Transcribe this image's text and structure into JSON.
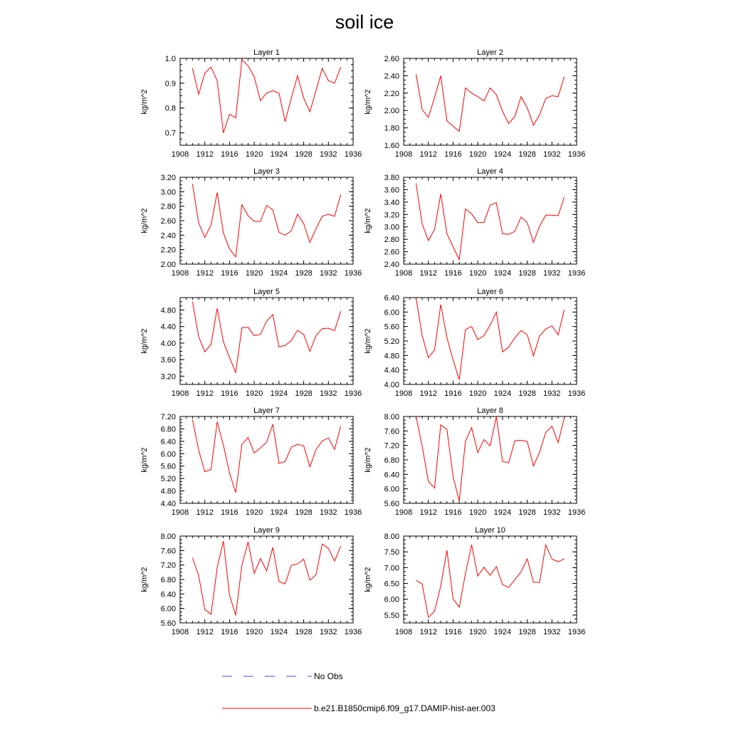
{
  "title": "soil ice",
  "colors": {
    "model": "#ff0000",
    "obs": "#4444ff",
    "axis": "#000000"
  },
  "legend": {
    "obs_label": "No Obs",
    "model_label": "b.e21.B1850cmip6.f09_g17.DAMIP-hist-aer.003"
  },
  "chart_data": [
    {
      "type": "line",
      "title": "Layer 1",
      "ylabel": "kg/m^2",
      "xlim": [
        1908,
        1936
      ],
      "ylim": [
        0.65,
        1.0
      ],
      "xticks": [
        "1908",
        "1912",
        "1916",
        "1920",
        "1924",
        "1928",
        "1932",
        "1936"
      ],
      "yticks": [
        {
          "v": 0.7,
          "t": "0.7"
        },
        {
          "v": 0.8,
          "t": "0.8"
        },
        {
          "v": 0.9,
          "t": "0.9"
        },
        {
          "v": 1.0,
          "t": "1.0"
        }
      ],
      "series": [
        {
          "x": [
            1910,
            1911,
            1912,
            1913,
            1914,
            1915,
            1916,
            1917,
            1918,
            1919,
            1920,
            1921,
            1922,
            1923,
            1924,
            1925,
            1926,
            1927,
            1928,
            1929,
            1930,
            1931,
            1932,
            1933,
            1934
          ],
          "y": [
            0.96,
            0.855,
            0.94,
            0.965,
            0.91,
            0.7,
            0.775,
            0.76,
            0.995,
            0.97,
            0.925,
            0.83,
            0.86,
            0.87,
            0.86,
            0.745,
            0.84,
            0.93,
            0.84,
            0.785,
            0.87,
            0.96,
            0.91,
            0.9,
            0.965
          ]
        }
      ]
    },
    {
      "type": "line",
      "title": "Layer 2",
      "ylabel": "kg/m^2",
      "xlim": [
        1908,
        1936
      ],
      "ylim": [
        1.6,
        2.6
      ],
      "xticks": [
        "1908",
        "1912",
        "1916",
        "1920",
        "1924",
        "1928",
        "1932",
        "1936"
      ],
      "yticks": [
        {
          "v": 1.6,
          "t": "1.60"
        },
        {
          "v": 1.8,
          "t": "1.80"
        },
        {
          "v": 2.0,
          "t": "2.00"
        },
        {
          "v": 2.2,
          "t": "2.20"
        },
        {
          "v": 2.4,
          "t": "2.40"
        },
        {
          "v": 2.6,
          "t": "2.60"
        }
      ],
      "series": [
        {
          "x": [
            1910,
            1911,
            1912,
            1913,
            1914,
            1915,
            1916,
            1917,
            1918,
            1919,
            1920,
            1921,
            1922,
            1923,
            1924,
            1925,
            1926,
            1927,
            1928,
            1929,
            1930,
            1931,
            1932,
            1933,
            1934
          ],
          "y": [
            2.42,
            2.01,
            1.92,
            2.15,
            2.4,
            1.88,
            1.82,
            1.76,
            2.26,
            2.2,
            2.16,
            2.11,
            2.26,
            2.18,
            1.99,
            1.85,
            1.93,
            2.16,
            2.03,
            1.83,
            1.95,
            2.14,
            2.17,
            2.16,
            2.39
          ]
        }
      ]
    },
    {
      "type": "line",
      "title": "Layer 3",
      "ylabel": "kg/m^2",
      "xlim": [
        1908,
        1936
      ],
      "ylim": [
        2.0,
        3.2
      ],
      "xticks": [
        "1908",
        "1912",
        "1916",
        "1920",
        "1924",
        "1928",
        "1932",
        "1936"
      ],
      "yticks": [
        {
          "v": 2.0,
          "t": "2.00"
        },
        {
          "v": 2.2,
          "t": "2.20"
        },
        {
          "v": 2.4,
          "t": "2.40"
        },
        {
          "v": 2.6,
          "t": "2.60"
        },
        {
          "v": 2.8,
          "t": "2.80"
        },
        {
          "v": 3.0,
          "t": "3.00"
        },
        {
          "v": 3.2,
          "t": "3.20"
        }
      ],
      "series": [
        {
          "x": [
            1910,
            1911,
            1912,
            1913,
            1914,
            1915,
            1916,
            1917,
            1918,
            1919,
            1920,
            1921,
            1922,
            1923,
            1924,
            1925,
            1926,
            1927,
            1928,
            1929,
            1930,
            1931,
            1932,
            1933,
            1934
          ],
          "y": [
            3.11,
            2.57,
            2.37,
            2.54,
            2.99,
            2.43,
            2.21,
            2.1,
            2.82,
            2.67,
            2.59,
            2.59,
            2.81,
            2.75,
            2.44,
            2.4,
            2.46,
            2.69,
            2.56,
            2.3,
            2.49,
            2.66,
            2.69,
            2.66,
            2.96
          ]
        }
      ]
    },
    {
      "type": "line",
      "title": "Layer 4",
      "ylabel": "kg/m^2",
      "xlim": [
        1908,
        1936
      ],
      "ylim": [
        2.4,
        3.8
      ],
      "xticks": [
        "1908",
        "1912",
        "1916",
        "1920",
        "1924",
        "1928",
        "1932",
        "1936"
      ],
      "yticks": [
        {
          "v": 2.4,
          "t": "2.40"
        },
        {
          "v": 2.6,
          "t": "2.60"
        },
        {
          "v": 2.8,
          "t": "2.80"
        },
        {
          "v": 3.0,
          "t": "3.00"
        },
        {
          "v": 3.2,
          "t": "3.20"
        },
        {
          "v": 3.4,
          "t": "3.40"
        },
        {
          "v": 3.6,
          "t": "3.60"
        },
        {
          "v": 3.8,
          "t": "3.80"
        }
      ],
      "series": [
        {
          "x": [
            1910,
            1911,
            1912,
            1913,
            1914,
            1915,
            1916,
            1917,
            1918,
            1919,
            1920,
            1921,
            1922,
            1923,
            1924,
            1925,
            1926,
            1927,
            1928,
            1929,
            1930,
            1931,
            1932,
            1933,
            1934
          ],
          "y": [
            3.7,
            3.05,
            2.78,
            2.96,
            3.53,
            2.89,
            2.68,
            2.47,
            3.29,
            3.21,
            3.07,
            3.07,
            3.35,
            3.39,
            2.89,
            2.88,
            2.93,
            3.16,
            3.07,
            2.75,
            3.01,
            3.19,
            3.19,
            3.18,
            3.48
          ]
        }
      ]
    },
    {
      "type": "line",
      "title": "Layer 5",
      "ylabel": "kg/m^2",
      "xlim": [
        1908,
        1936
      ],
      "ylim": [
        3.0,
        5.1
      ],
      "xticks": [
        "1908",
        "1912",
        "1916",
        "1920",
        "1924",
        "1928",
        "1932",
        "1936"
      ],
      "yticks": [
        {
          "v": 3.2,
          "t": "3.20"
        },
        {
          "v": 3.6,
          "t": "3.60"
        },
        {
          "v": 4.0,
          "t": "4.00"
        },
        {
          "v": 4.4,
          "t": "4.40"
        },
        {
          "v": 4.8,
          "t": "4.80"
        }
      ],
      "series": [
        {
          "x": [
            1910,
            1911,
            1912,
            1913,
            1914,
            1915,
            1916,
            1917,
            1918,
            1919,
            1920,
            1921,
            1922,
            1923,
            1924,
            1925,
            1926,
            1927,
            1928,
            1929,
            1930,
            1931,
            1932,
            1933,
            1934
          ],
          "y": [
            5.0,
            4.16,
            3.79,
            3.97,
            4.84,
            4.03,
            3.65,
            3.29,
            4.37,
            4.38,
            4.18,
            4.21,
            4.53,
            4.69,
            3.91,
            3.94,
            4.06,
            4.31,
            4.21,
            3.8,
            4.18,
            4.35,
            4.36,
            4.3,
            4.77
          ]
        }
      ]
    },
    {
      "type": "line",
      "title": "Layer 6",
      "ylabel": "kg/m^2",
      "xlim": [
        1908,
        1936
      ],
      "ylim": [
        4.0,
        6.4
      ],
      "xticks": [
        "1908",
        "1912",
        "1916",
        "1920",
        "1924",
        "1928",
        "1932",
        "1936"
      ],
      "yticks": [
        {
          "v": 4.0,
          "t": "4.00"
        },
        {
          "v": 4.4,
          "t": "4.40"
        },
        {
          "v": 4.8,
          "t": "4.80"
        },
        {
          "v": 5.2,
          "t": "5.20"
        },
        {
          "v": 5.6,
          "t": "5.60"
        },
        {
          "v": 6.0,
          "t": "6.00"
        },
        {
          "v": 6.4,
          "t": "6.40"
        }
      ],
      "series": [
        {
          "x": [
            1910,
            1911,
            1912,
            1913,
            1914,
            1915,
            1916,
            1917,
            1918,
            1919,
            1920,
            1921,
            1922,
            1923,
            1924,
            1925,
            1926,
            1927,
            1928,
            1929,
            1930,
            1931,
            1932,
            1933,
            1934
          ],
          "y": [
            6.39,
            5.35,
            4.74,
            4.95,
            6.21,
            5.29,
            4.68,
            4.13,
            5.52,
            5.6,
            5.24,
            5.35,
            5.64,
            6.0,
            4.9,
            5.03,
            5.29,
            5.49,
            5.37,
            4.79,
            5.34,
            5.53,
            5.62,
            5.37,
            6.06
          ]
        }
      ]
    },
    {
      "type": "line",
      "title": "Layer 7",
      "ylabel": "kg/m^2",
      "xlim": [
        1908,
        1936
      ],
      "ylim": [
        4.4,
        7.2
      ],
      "xticks": [
        "1908",
        "1912",
        "1916",
        "1920",
        "1924",
        "1928",
        "1932",
        "1936"
      ],
      "yticks": [
        {
          "v": 4.4,
          "t": "4.40"
        },
        {
          "v": 4.8,
          "t": "4.80"
        },
        {
          "v": 5.2,
          "t": "5.20"
        },
        {
          "v": 5.6,
          "t": "5.60"
        },
        {
          "v": 6.0,
          "t": "6.00"
        },
        {
          "v": 6.4,
          "t": "6.40"
        },
        {
          "v": 6.8,
          "t": "6.80"
        },
        {
          "v": 7.2,
          "t": "7.20"
        }
      ],
      "series": [
        {
          "x": [
            1910,
            1911,
            1912,
            1913,
            1914,
            1915,
            1916,
            1917,
            1918,
            1919,
            1920,
            1921,
            1922,
            1923,
            1924,
            1925,
            1926,
            1927,
            1928,
            1929,
            1930,
            1931,
            1932,
            1933,
            1934
          ],
          "y": [
            7.1,
            6.12,
            5.42,
            5.49,
            7.03,
            6.28,
            5.38,
            4.75,
            6.3,
            6.52,
            6.02,
            6.19,
            6.37,
            6.95,
            5.69,
            5.75,
            6.21,
            6.3,
            6.25,
            5.58,
            6.13,
            6.41,
            6.51,
            6.14,
            6.89
          ]
        }
      ]
    },
    {
      "type": "line",
      "title": "Layer 8",
      "ylabel": "kg/m^2",
      "xlim": [
        1908,
        1936
      ],
      "ylim": [
        5.6,
        8.0
      ],
      "xticks": [
        "1908",
        "1912",
        "1916",
        "1920",
        "1924",
        "1928",
        "1932",
        "1936"
      ],
      "yticks": [
        {
          "v": 5.6,
          "t": "5.60"
        },
        {
          "v": 6.0,
          "t": "6.00"
        },
        {
          "v": 6.4,
          "t": "6.40"
        },
        {
          "v": 6.8,
          "t": "6.80"
        },
        {
          "v": 7.2,
          "t": "7.20"
        },
        {
          "v": 7.6,
          "t": "7.60"
        },
        {
          "v": 8.0,
          "t": "8.00"
        }
      ],
      "series": [
        {
          "x": [
            1910,
            1911,
            1912,
            1913,
            1914,
            1915,
            1916,
            1917,
            1918,
            1919,
            1920,
            1921,
            1922,
            1923,
            1924,
            1925,
            1926,
            1927,
            1928,
            1929,
            1930,
            1931,
            1932,
            1933,
            1934
          ],
          "y": [
            8.0,
            7.18,
            6.21,
            6.02,
            7.77,
            7.64,
            6.34,
            5.66,
            7.32,
            7.69,
            7.0,
            7.36,
            7.19,
            8.0,
            6.76,
            6.72,
            7.33,
            7.34,
            7.31,
            6.63,
            7.01,
            7.56,
            7.73,
            7.28,
            7.96
          ]
        }
      ]
    },
    {
      "type": "line",
      "title": "Layer 9",
      "ylabel": "kg/m^2",
      "xlim": [
        1908,
        1936
      ],
      "ylim": [
        5.6,
        8.0
      ],
      "xticks": [
        "1908",
        "1912",
        "1916",
        "1920",
        "1924",
        "1928",
        "1932",
        "1936"
      ],
      "yticks": [
        {
          "v": 5.6,
          "t": "5.60"
        },
        {
          "v": 6.0,
          "t": "6.00"
        },
        {
          "v": 6.4,
          "t": "6.40"
        },
        {
          "v": 6.8,
          "t": "6.80"
        },
        {
          "v": 7.2,
          "t": "7.20"
        },
        {
          "v": 7.6,
          "t": "7.60"
        },
        {
          "v": 8.0,
          "t": "8.00"
        }
      ],
      "series": [
        {
          "x": [
            1910,
            1911,
            1912,
            1913,
            1914,
            1915,
            1916,
            1917,
            1918,
            1919,
            1920,
            1921,
            1922,
            1923,
            1924,
            1925,
            1926,
            1927,
            1928,
            1929,
            1930,
            1931,
            1932,
            1933,
            1934
          ],
          "y": [
            7.4,
            6.91,
            5.97,
            5.84,
            7.13,
            7.86,
            6.37,
            5.81,
            7.2,
            7.84,
            6.97,
            7.38,
            7.04,
            7.69,
            6.74,
            6.68,
            7.19,
            7.23,
            7.36,
            6.78,
            6.93,
            7.78,
            7.66,
            7.31,
            7.72
          ]
        }
      ]
    },
    {
      "type": "line",
      "title": "Layer 10",
      "ylabel": "kg/m^2",
      "xlim": [
        1908,
        1936
      ],
      "ylim": [
        5.25,
        8.0
      ],
      "xticks": [
        "1908",
        "1912",
        "1916",
        "1920",
        "1924",
        "1928",
        "1932",
        "1936"
      ],
      "yticks": [
        {
          "v": 5.5,
          "t": "5.50"
        },
        {
          "v": 6.0,
          "t": "6.00"
        },
        {
          "v": 6.5,
          "t": "6.50"
        },
        {
          "v": 7.0,
          "t": "7.00"
        },
        {
          "v": 7.5,
          "t": "7.50"
        },
        {
          "v": 8.0,
          "t": "8.00"
        }
      ],
      "series": [
        {
          "x": [
            1910,
            1911,
            1912,
            1913,
            1914,
            1915,
            1916,
            1917,
            1918,
            1919,
            1920,
            1921,
            1922,
            1923,
            1924,
            1925,
            1926,
            1927,
            1928,
            1929,
            1930,
            1931,
            1932,
            1933,
            1934
          ],
          "y": [
            6.6,
            6.48,
            5.43,
            5.62,
            6.42,
            7.55,
            6.01,
            5.75,
            6.81,
            7.73,
            6.73,
            7.01,
            6.76,
            7.03,
            6.46,
            6.37,
            6.62,
            6.87,
            7.28,
            6.54,
            6.53,
            7.72,
            7.27,
            7.19,
            7.28
          ]
        }
      ]
    }
  ]
}
